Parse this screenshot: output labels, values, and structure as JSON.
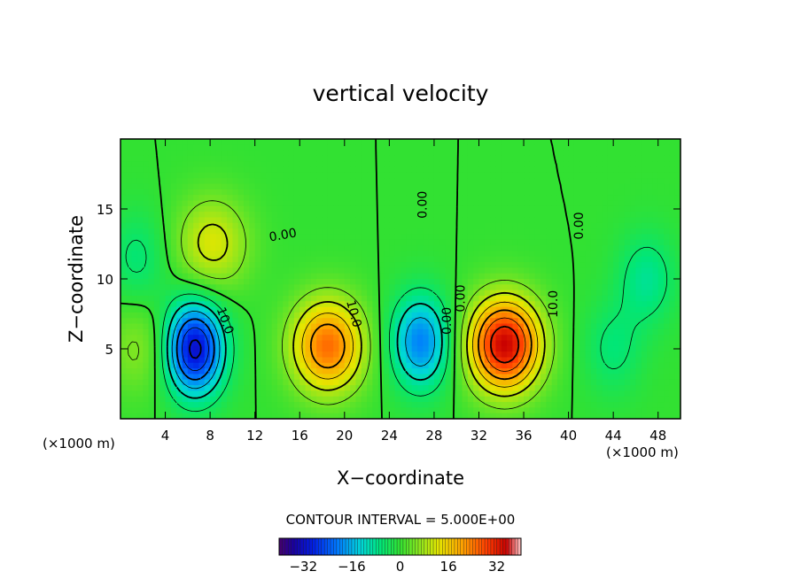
{
  "chart_data": {
    "type": "heatmap",
    "title": "vertical velocity",
    "xlabel": "X−coordinate",
    "ylabel": "Z−coordinate",
    "x_unit_left": "(×1000 m)",
    "x_unit_right": "(×1000 m)",
    "xlim": [
      0,
      50
    ],
    "ylim": [
      0,
      20
    ],
    "x_ticks": [
      4,
      8,
      12,
      16,
      20,
      24,
      28,
      32,
      36,
      40,
      44,
      48
    ],
    "x_tick_labels": [
      "4",
      "8",
      "12",
      "16",
      "20",
      "24",
      "28",
      "32",
      "36",
      "40",
      "44",
      "48"
    ],
    "y_ticks": [
      5,
      10,
      15
    ],
    "y_tick_labels": [
      "5",
      "10",
      "15"
    ],
    "contour_interval_text": "CONTOUR INTERVAL = 5.000E+00",
    "contour_labels": [
      {
        "text": "0.00",
        "x": 14.5,
        "y": 13.1,
        "rot": -10
      },
      {
        "text": "0.00",
        "x": 27.0,
        "y": 15.3,
        "rot": -90
      },
      {
        "text": "0.00",
        "x": 41.0,
        "y": 13.8,
        "rot": -90
      },
      {
        "text": "10.0",
        "x": 20.8,
        "y": 7.5,
        "rot": 75
      },
      {
        "text": "10.0",
        "x": 9.3,
        "y": 7.0,
        "rot": 70
      },
      {
        "text": "10.0",
        "x": 38.7,
        "y": 8.2,
        "rot": -90
      },
      {
        "text": "0.00",
        "x": 30.4,
        "y": 8.6,
        "rot": -90
      },
      {
        "text": "0.00",
        "x": 29.2,
        "y": 7.0,
        "rot": -90
      }
    ],
    "features": [
      {
        "kind": "max",
        "x": 34.3,
        "z": 5.3,
        "value": 35
      },
      {
        "kind": "max",
        "x": 18.5,
        "z": 5.2,
        "value": 25
      },
      {
        "kind": "min",
        "x": 6.6,
        "z": 5.0,
        "value": -32
      },
      {
        "kind": "min",
        "x": 26.8,
        "z": 5.5,
        "value": -20
      },
      {
        "kind": "min",
        "x": 47.0,
        "z": 10.0,
        "value": -8
      },
      {
        "kind": "min",
        "x": 44.0,
        "z": 5.0,
        "value": -6
      },
      {
        "kind": "max",
        "x": 8.2,
        "z": 12.5,
        "value": 12
      },
      {
        "kind": "max",
        "x": 1.8,
        "z": 5.0,
        "value": 6
      },
      {
        "kind": "min",
        "x": 1.5,
        "z": 11.5,
        "value": -6
      }
    ],
    "colorbar": {
      "range": [
        -40,
        40
      ],
      "ticks": [
        -32,
        -16,
        0,
        16,
        32
      ],
      "tick_labels": [
        "−32",
        "−16",
        "0",
        "16",
        "32"
      ]
    },
    "grid": false,
    "legend": "none"
  }
}
